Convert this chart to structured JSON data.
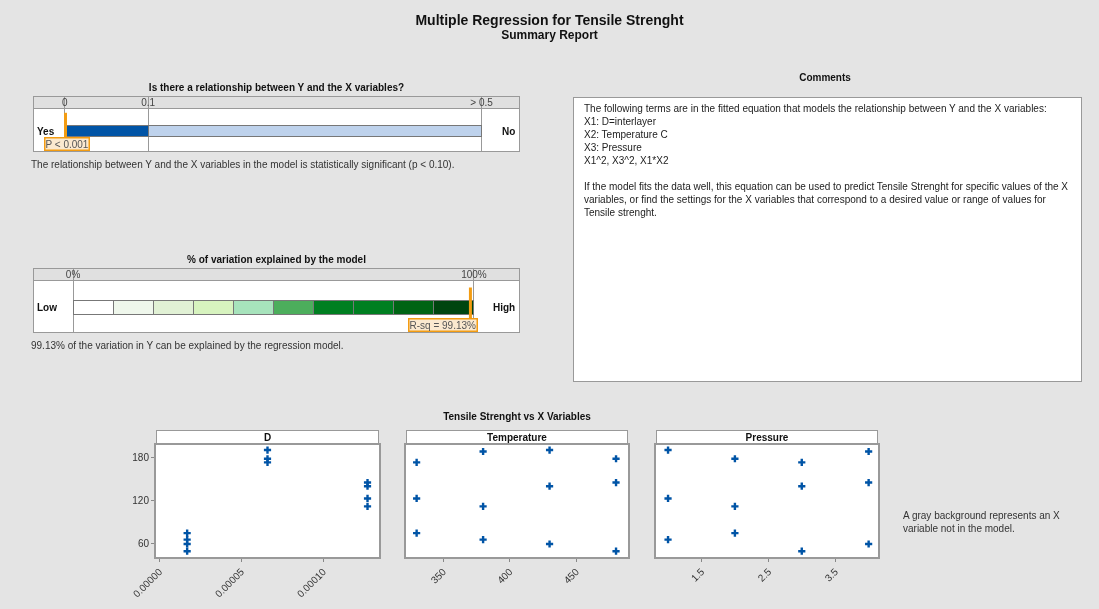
{
  "chart_data": [
    {
      "type": "other",
      "title": "Multiple Regression for Tensile Strenght",
      "subtitle": "Summary Report"
    },
    {
      "type": "bar",
      "orientation": "horizontal",
      "stacked": true,
      "title": "Is there a relationship between Y and the X variables?",
      "categories": [
        null
      ],
      "series": [
        {
          "color": "#0054a6",
          "values": [
            0.1
          ]
        },
        {
          "color": "#bed2ec",
          "values": [
            0.4
          ]
        }
      ],
      "xlim": [
        -0.038,
        0.546
      ],
      "xticks": [
        0,
        0.1,
        {
          "value": 0.5,
          "label": "> 0.5"
        }
      ],
      "grid": "x",
      "ref_lines": [
        {
          "axis": "x",
          "value": 0.001,
          "label": "P < 0.001",
          "color": "#f39c12"
        }
      ],
      "annotations": [
        "Yes",
        "No",
        "The relationship between Y and the X variables in the model is statistically significant (p < 0.10)."
      ]
    },
    {
      "type": "bar",
      "orientation": "horizontal",
      "stacked": true,
      "title": "% of variation explained by the model",
      "categories": [
        null
      ],
      "series": [
        {
          "color": "#ffffff",
          "values": [
            10
          ]
        },
        {
          "color": "#eff7ec",
          "values": [
            10
          ]
        },
        {
          "color": "#e1f1d5",
          "values": [
            10
          ]
        },
        {
          "color": "#d7f3bf",
          "values": [
            10
          ]
        },
        {
          "color": "#a7e3bc",
          "values": [
            10
          ]
        },
        {
          "color": "#4cae5c",
          "values": [
            10
          ]
        },
        {
          "color": "#007f21",
          "values": [
            10
          ]
        },
        {
          "color": "#007f21",
          "values": [
            10
          ]
        },
        {
          "color": "#006414",
          "values": [
            10
          ]
        },
        {
          "color": "#00450f",
          "values": [
            10
          ]
        }
      ],
      "xlim": [
        -10,
        111.5
      ],
      "xticks": [
        {
          "value": 0,
          "label": "0%"
        },
        {
          "value": 100,
          "label": "100%"
        }
      ],
      "grid": "x",
      "ref_lines": [
        {
          "axis": "x",
          "value": 99.13,
          "label": "R-sq = 99.13%",
          "color": "#f39c12"
        }
      ],
      "annotations": [
        "Low",
        "High",
        "99.13% of the variation in Y can be explained by the regression model."
      ]
    },
    {
      "type": "other",
      "title": "Comments",
      "annotations": [
        "The following terms are in the fitted equation that models the relationship between Y and the X variables:\nX1: D=interlayer\nX2: Temperature C\nX3: Pressure\nX1^2, X3^2, X1*X2",
        "If the model fits the data well, this equation can be used to predict Tensile Strenght for specific values of the X variables, or find the settings for the X variables that correspond to a desired value or range of values for Tensile strenght."
      ]
    },
    {
      "type": "scatter",
      "title": "D",
      "color": "#0054a6",
      "marker": "cross",
      "x": [
        6.6e-05,
        0.000127,
        1.7e-05,
        6.6e-05,
        0.000127,
        1.7e-05,
        6.6e-05,
        0.000127,
        1.7e-05,
        6.6e-05,
        0.000127,
        1.7e-05
      ],
      "values": [
        173,
        123,
        75,
        null,
        112,
        66,
        190,
        140,
        60,
        178,
        145,
        50
      ],
      "xlim": [
        -2e-06,
        0.000134
      ],
      "xticks": [
        {
          "value": 0,
          "label": "0.00000"
        },
        {
          "value": 5e-05,
          "label": "0.00005"
        },
        {
          "value": 0.0001,
          "label": "0.00010"
        }
      ],
      "ylim": [
        42,
        197
      ],
      "yticks": [
        60,
        120,
        180
      ]
    },
    {
      "type": "scatter",
      "title": "Temperature",
      "color": "#0054a6",
      "marker": "cross",
      "tick_labels": "x",
      "x": [
        330,
        330,
        330,
        380,
        380,
        380,
        430,
        430,
        430,
        480,
        480,
        480
      ],
      "values": [
        173,
        123,
        75,
        188,
        112,
        66,
        190,
        140,
        60,
        178,
        145,
        50
      ],
      "xlim": [
        322,
        489
      ],
      "xticks": [
        350,
        400,
        450
      ],
      "ylim": [
        42,
        197
      ],
      "yticks": [
        60,
        120,
        180
      ],
      "annotations": [
        "Tensile Strenght vs X Variables"
      ]
    },
    {
      "type": "scatter",
      "title": "Pressure",
      "color": "#0054a6",
      "marker": "cross",
      "tick_labels": "x",
      "x": [
        3,
        1,
        2,
        4,
        2,
        1,
        1,
        3,
        4,
        2,
        4,
        3
      ],
      "values": [
        173,
        123,
        75,
        188,
        112,
        66,
        190,
        140,
        60,
        178,
        145,
        50
      ],
      "xlim": [
        0.82,
        4.14
      ],
      "xticks": [
        1.5,
        2.5,
        3.5
      ],
      "ylim": [
        42,
        197
      ],
      "yticks": [
        60,
        120,
        180
      ],
      "annotations": [
        "A gray background represents an X variable not in the model."
      ]
    }
  ]
}
